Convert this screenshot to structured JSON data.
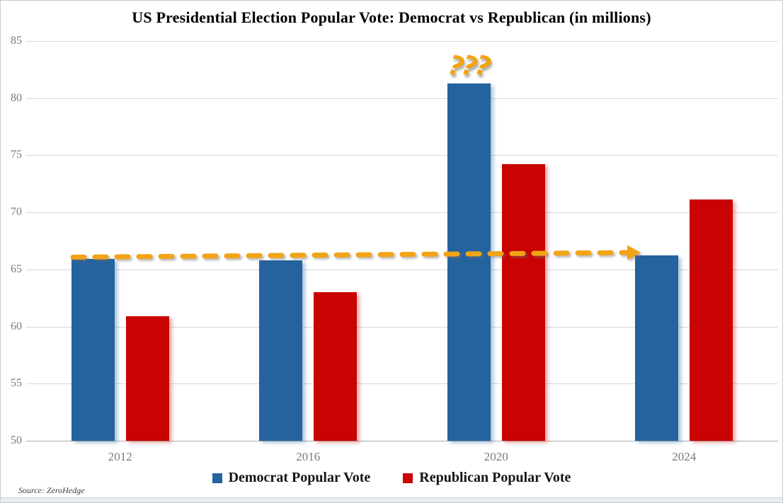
{
  "chart_data": {
    "type": "bar",
    "title": "US Presidential Election Popular Vote: Democrat vs Republican (in millions)",
    "categories": [
      "2012",
      "2016",
      "2020",
      "2024"
    ],
    "series": [
      {
        "name": "Democrat Popular Vote",
        "color": "#25639E",
        "values": [
          65.9,
          65.8,
          81.3,
          66.2
        ]
      },
      {
        "name": "Republican Popular Vote",
        "color": "#C90202",
        "values": [
          60.9,
          63.0,
          74.2,
          71.1
        ]
      }
    ],
    "ylim": [
      50,
      85
    ],
    "ytick_step": 5,
    "grid": "horizontal",
    "legend_position": "bottom",
    "annotations": [
      {
        "id": "question-marks",
        "text": "???",
        "color": "#F2A413",
        "over_category": "2020",
        "over_series": "Democrat Popular Vote"
      },
      {
        "id": "flat-trend-arrow",
        "shape": "dashed-arrow",
        "color": "#F2A413",
        "from_category": "2012",
        "to_category": "2024",
        "at_value": 66.0
      }
    ]
  },
  "footer": {
    "source_label": "Source: ZeroHedge"
  }
}
